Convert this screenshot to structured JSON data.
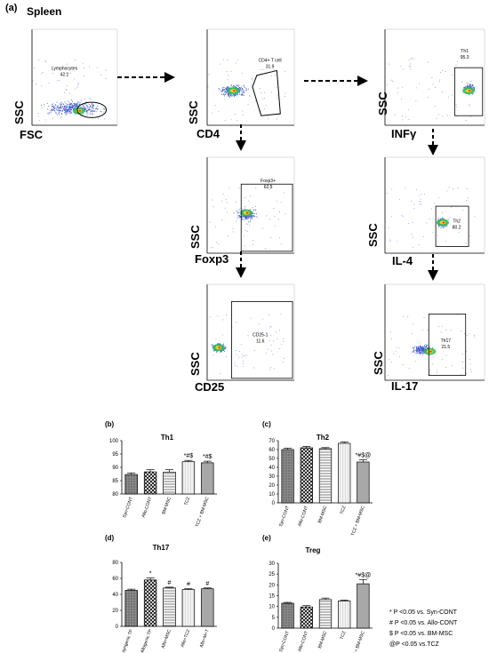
{
  "figure": {
    "panel_a_label": "(a)",
    "tissue_label": "Spleen"
  },
  "flow_panels": [
    {
      "id": "lymph",
      "x_label": "FSC",
      "y_label": "SSC",
      "gate_name": "Lymphocytes",
      "gate_value": "42.1",
      "gate_shape": "ellipse"
    },
    {
      "id": "cd4",
      "x_label": "CD4",
      "y_label": "SSC",
      "gate_name": "CD4+ T cell",
      "gate_value": "31.9",
      "gate_shape": "polygon"
    },
    {
      "id": "th1",
      "x_label": "INFγ",
      "y_label": "SSC",
      "gate_name": "Th1",
      "gate_value": "95.3",
      "gate_shape": "rect"
    },
    {
      "id": "foxp3",
      "x_label": "Foxp3",
      "y_label": "SSC",
      "gate_name": "Foxp3+",
      "gate_value": "62.5",
      "gate_shape": "rect"
    },
    {
      "id": "th2",
      "x_label": "IL-4",
      "y_label": "SSC",
      "gate_name": "Th2",
      "gate_value": "80.2",
      "gate_shape": "rect"
    },
    {
      "id": "cd25",
      "x_label": "CD25",
      "y_label": "SSC",
      "gate_name": "CD25-1",
      "gate_value": "11.6",
      "gate_shape": "rect"
    },
    {
      "id": "th17",
      "x_label": "IL-17",
      "y_label": "SSC",
      "gate_name": "Th17",
      "gate_value": "21.5",
      "gate_shape": "rect"
    }
  ],
  "legend": [
    "* P <0.05 vs. Syn-CONT",
    "# P <0.05 vs. Allo-CONT",
    "$ P <0.05 vs. BM-MSC",
    "@P <0.05 vs.TCZ"
  ],
  "chart_data": [
    {
      "panel": "(b)",
      "type": "bar",
      "title": "Th1",
      "categories": [
        "Syn-CONT",
        "Allo-CONT",
        "BM-MSC",
        "TCZ",
        "TCZ + BM-MSC"
      ],
      "values": [
        87.3,
        88.3,
        88.2,
        92.1,
        91.7
      ],
      "errors": [
        0.6,
        0.8,
        0.9,
        0.5,
        0.6
      ],
      "annotations": [
        "",
        "",
        "",
        "*#$",
        "*#$"
      ],
      "ylim": [
        80,
        100
      ],
      "yticks": [
        80,
        85,
        90,
        95,
        100
      ],
      "patterns": [
        "dense",
        "cross",
        "hline",
        "blank",
        "gray"
      ]
    },
    {
      "panel": "(c)",
      "type": "bar",
      "title": "Th2",
      "categories": [
        "Syn-CONT",
        "Allo-CONT",
        "BM-MSC",
        "TCZ",
        "TCZ + BM-MSC"
      ],
      "values": [
        60,
        62,
        61,
        67,
        46
      ],
      "errors": [
        1.5,
        1.5,
        1.2,
        1.5,
        2.5
      ],
      "annotations": [
        "",
        "",
        "",
        "",
        "*#$@"
      ],
      "ylim": [
        0,
        70
      ],
      "yticks": [
        0,
        10,
        20,
        30,
        40,
        50,
        60,
        70
      ],
      "patterns": [
        "dense",
        "cross",
        "hline",
        "blank",
        "gray"
      ]
    },
    {
      "panel": "(d)",
      "type": "bar",
      "title": "Th17",
      "categories": [
        "syngenic TP",
        "Allogenic TP",
        "Allo+MSC",
        "Allo+TCZ",
        "Allo+M+T"
      ],
      "values": [
        45,
        58,
        48,
        46,
        47
      ],
      "errors": [
        1.5,
        2.5,
        1.0,
        1.0,
        1.0
      ],
      "annotations": [
        "",
        "*",
        "#",
        "#",
        "#"
      ],
      "ylim": [
        0,
        80
      ],
      "yticks": [
        0,
        20,
        40,
        60,
        80
      ],
      "patterns": [
        "dense",
        "cross",
        "hline",
        "blank",
        "gray"
      ]
    },
    {
      "panel": "(e)",
      "type": "bar",
      "title": "Treg",
      "categories": [
        "Syn-CONT",
        "Allo-CONT",
        "BM-MSC",
        "TCZ",
        "TCZ + BM-MSC"
      ],
      "values": [
        11.5,
        9.8,
        13.2,
        12.6,
        20.5
      ],
      "errors": [
        0.4,
        0.6,
        0.7,
        0.4,
        2.0
      ],
      "annotations": [
        "",
        "",
        "",
        "",
        "*#$@"
      ],
      "ylim": [
        0,
        30
      ],
      "yticks": [
        0,
        5,
        10,
        15,
        20,
        25,
        30
      ],
      "patterns": [
        "dense",
        "cross",
        "hline",
        "blank",
        "gray"
      ]
    }
  ]
}
